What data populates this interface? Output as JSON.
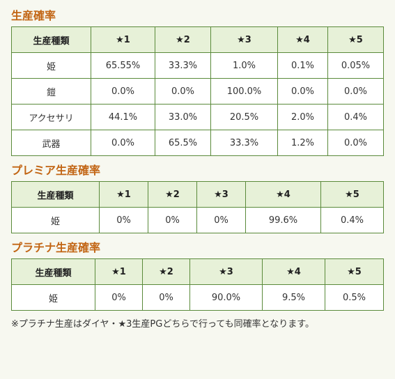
{
  "sections": [
    {
      "title": "生産確率",
      "headers": [
        "生産種類",
        "★1",
        "★2",
        "★3",
        "★4",
        "★5"
      ],
      "rows": [
        [
          "姫",
          "65.55%",
          "33.3%",
          "1.0%",
          "0.1%",
          "0.05%"
        ],
        [
          "鎧",
          "0.0%",
          "0.0%",
          "100.0%",
          "0.0%",
          "0.0%"
        ],
        [
          "アクセサリ",
          "44.1%",
          "33.0%",
          "20.5%",
          "2.0%",
          "0.4%"
        ],
        [
          "武器",
          "0.0%",
          "65.5%",
          "33.3%",
          "1.2%",
          "0.0%"
        ]
      ]
    },
    {
      "title": "プレミア生産確率",
      "headers": [
        "生産種類",
        "★1",
        "★2",
        "★3",
        "★4",
        "★5"
      ],
      "rows": [
        [
          "姫",
          "0%",
          "0%",
          "0%",
          "99.6%",
          "0.4%"
        ]
      ]
    },
    {
      "title": "プラチナ生産確率",
      "headers": [
        "生産種類",
        "★1",
        "★2",
        "★3",
        "★4",
        "★5"
      ],
      "rows": [
        [
          "姫",
          "0%",
          "0%",
          "90.0%",
          "9.5%",
          "0.5%"
        ]
      ]
    }
  ],
  "note": "※プラチナ生産はダイヤ・★3生産PGどちらで行っても同確率となります。"
}
